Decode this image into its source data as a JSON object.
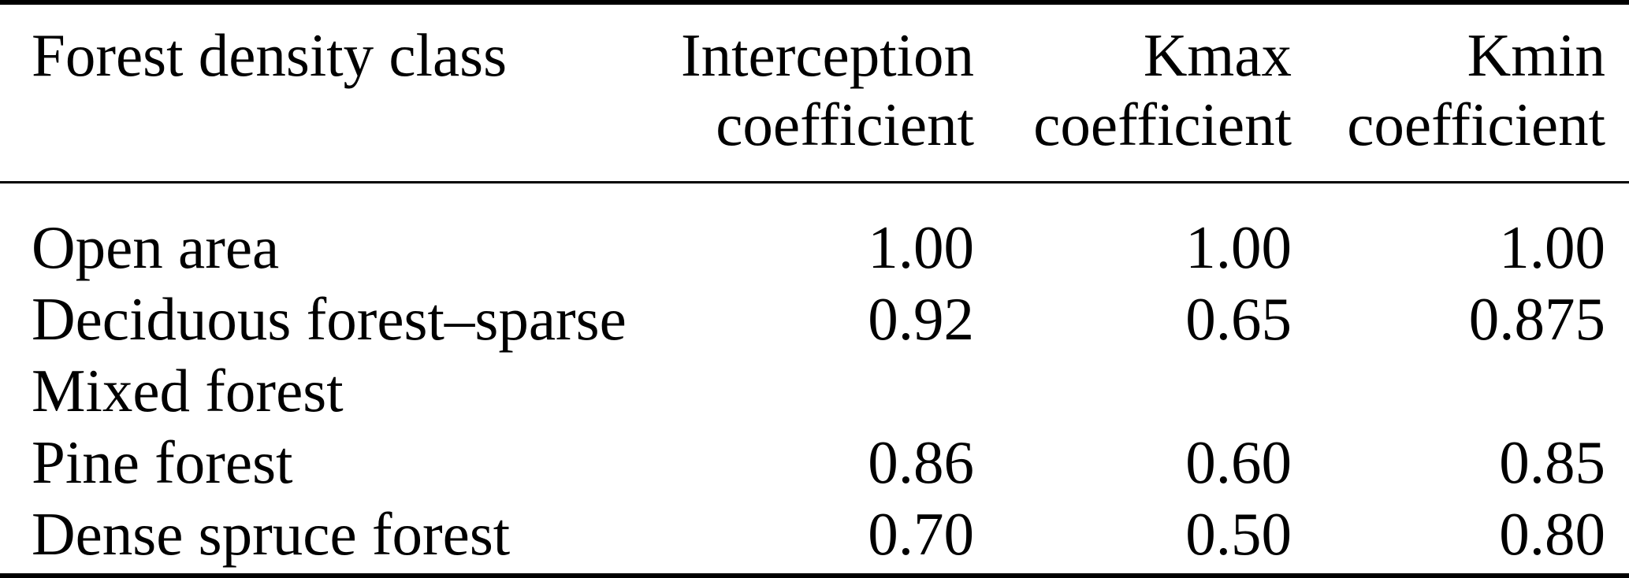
{
  "colors": {
    "background": "#ffffff",
    "text": "#000000",
    "rule": "#000000"
  },
  "table": {
    "headers": [
      {
        "line1": "Forest density class",
        "line2": ""
      },
      {
        "line1": "Interception",
        "line2": "coefficient"
      },
      {
        "line1": "Kmax",
        "line2": "coefficient"
      },
      {
        "line1": "Kmin",
        "line2": "coefficient"
      }
    ],
    "rows": [
      {
        "label": "Open area",
        "values": [
          "1.00",
          "1.00",
          "1.00"
        ]
      },
      {
        "label": "Deciduous forest–sparse",
        "values": [
          "0.92",
          "0.65",
          "0.875"
        ]
      },
      {
        "label": "Mixed forest",
        "values": [
          "",
          "",
          ""
        ]
      },
      {
        "label": "Pine forest",
        "values": [
          "0.86",
          "0.60",
          "0.85"
        ]
      },
      {
        "label": "Dense spruce forest",
        "values": [
          "0.70",
          "0.50",
          "0.80"
        ]
      }
    ]
  }
}
